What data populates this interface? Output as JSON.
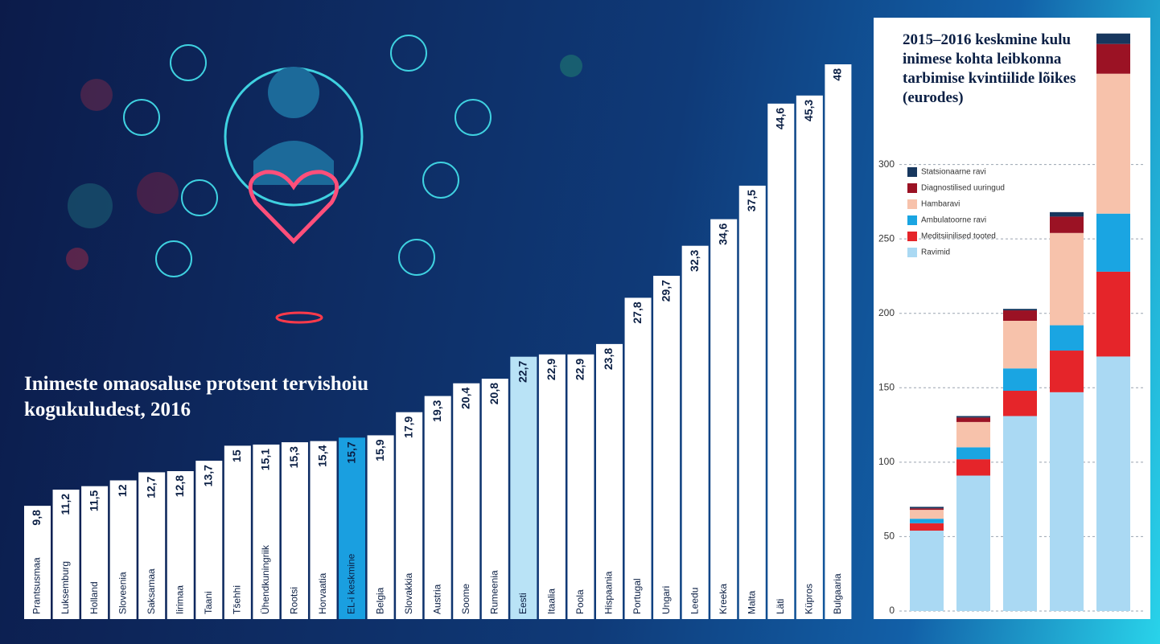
{
  "chart_data": [
    {
      "type": "bar",
      "title": "Inimeste omaosaluse protsent tervishoiu kogukuludest, 2016",
      "categories": [
        "Prantsusmaa",
        "Luksemburg",
        "Holland",
        "Sloveenia",
        "Saksamaa",
        "Iirimaa",
        "Taani",
        "Tšehhi",
        "Ühendkuningriik",
        "Rootsi",
        "Horvaatia",
        "EL-i keskmine",
        "Belgia",
        "Slovakkia",
        "Austria",
        "Soome",
        "Rumeenia",
        "Eesti",
        "Itaalia",
        "Poola",
        "Hispaania",
        "Portugal",
        "Ungari",
        "Leedu",
        "Kreeka",
        "Malta",
        "Läti",
        "Küpros",
        "Bulgaaria"
      ],
      "values": [
        9.8,
        11.2,
        11.5,
        12,
        12.7,
        12.8,
        13.7,
        15,
        15.1,
        15.3,
        15.4,
        15.7,
        15.9,
        17.9,
        19.3,
        20.4,
        20.8,
        22.7,
        22.9,
        22.9,
        23.8,
        27.8,
        29.7,
        32.3,
        34.6,
        37.5,
        44.6,
        45.3,
        48
      ],
      "value_labels": [
        "9,8",
        "11,2",
        "11,5",
        "12",
        "12,7",
        "12,8",
        "13,7",
        "15",
        "15,1",
        "15,3",
        "15,4",
        "15,7",
        "15,9",
        "17,9",
        "19,3",
        "20,4",
        "20,8",
        "22,7",
        "22,9",
        "22,9",
        "23,8",
        "27,8",
        "29,7",
        "32,3",
        "34,6",
        "37,5",
        "44,6",
        "45,3",
        "48"
      ],
      "colors": [
        "#ffffff",
        "#ffffff",
        "#ffffff",
        "#ffffff",
        "#ffffff",
        "#ffffff",
        "#ffffff",
        "#ffffff",
        "#ffffff",
        "#ffffff",
        "#ffffff",
        "#1a9fe0",
        "#ffffff",
        "#ffffff",
        "#ffffff",
        "#ffffff",
        "#ffffff",
        "#b9e3f6",
        "#ffffff",
        "#ffffff",
        "#ffffff",
        "#ffffff",
        "#ffffff",
        "#ffffff",
        "#ffffff",
        "#ffffff",
        "#ffffff",
        "#ffffff",
        "#ffffff"
      ]
    },
    {
      "type": "bar",
      "stacked": true,
      "title": "2015–2016 keskmine kulu inimese kohta leibkonna tarbimise kvintiilide lõikes (eurodes)",
      "categories": [
        null,
        null,
        null,
        null,
        null
      ],
      "series": [
        {
          "name": "Ravimid",
          "color": "#aad9f3",
          "values": [
            54,
            91,
            131,
            147,
            171
          ]
        },
        {
          "name": "Meditsiinilised tooted",
          "color": "#e5252a",
          "values": [
            5,
            11,
            17,
            28,
            57
          ]
        },
        {
          "name": "Ambulatoorne ravi",
          "color": "#1aa5e2",
          "values": [
            3,
            8,
            15,
            17,
            39
          ]
        },
        {
          "name": "Hambaravi",
          "color": "#f7c2ab",
          "values": [
            6,
            17,
            32,
            62,
            94
          ]
        },
        {
          "name": "Diagnostilised uuringud",
          "color": "#9b1224",
          "values": [
            1,
            3,
            7,
            11,
            20
          ]
        },
        {
          "name": "Statsionaarne ravi",
          "color": "#17375e",
          "values": [
            1,
            1,
            1,
            3,
            7
          ]
        }
      ],
      "ylim": [
        0,
        390
      ],
      "yticks": [
        0,
        50,
        100,
        150,
        200,
        250,
        300
      ],
      "grid": true,
      "legend": "top-left"
    }
  ]
}
